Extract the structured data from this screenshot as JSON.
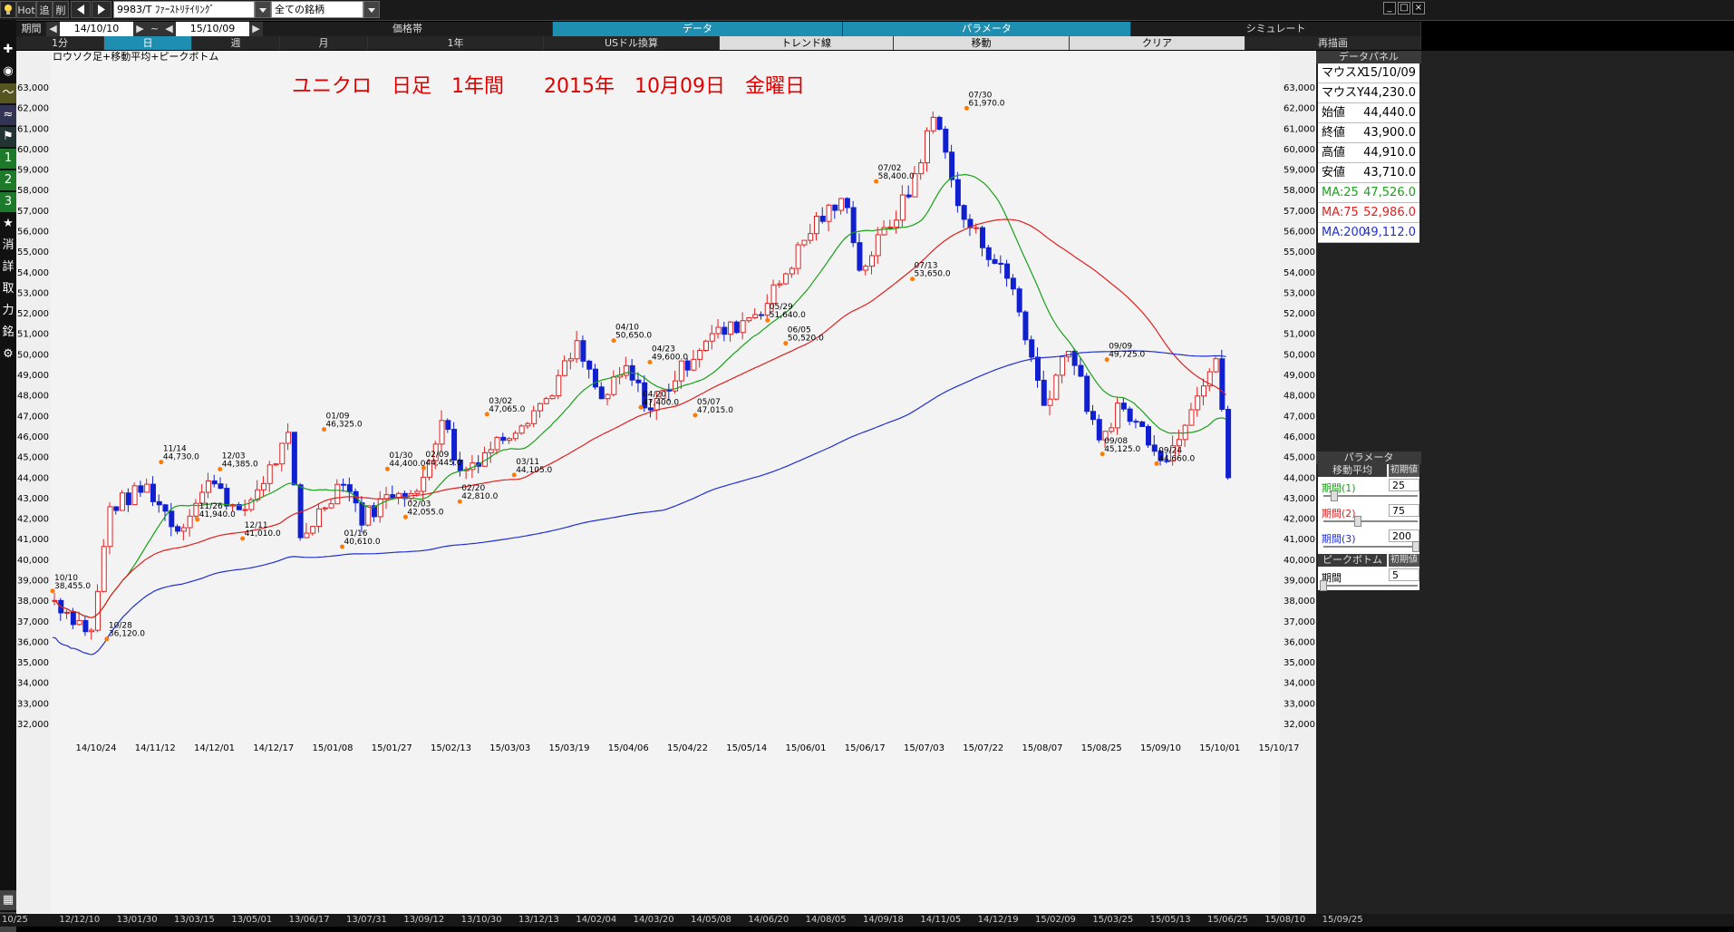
{
  "toolbar": {
    "hot": "Hot",
    "add": "追",
    "del": "削",
    "symbol": "9983/T ﾌｧｰｽﾄﾘﾃｲﾘﾝｸﾞ",
    "universe": "全ての銘柄",
    "period_label": "期間",
    "date_from": "14/10/10",
    "tilde": "~",
    "date_to": "15/10/09"
  },
  "menu_tabs": [
    "価格帯",
    "データ",
    "パラメータ",
    "シミュレート"
  ],
  "timeframes": [
    "1分",
    "日",
    "週",
    "月",
    "1年",
    "USドル換算",
    "トレンド線",
    "移動",
    "クリア",
    "再描画"
  ],
  "left_tools": [
    "search",
    "crosshair",
    "camera",
    "line",
    "wave",
    "flag",
    "1",
    "2",
    "3",
    "star",
    "消",
    "詳",
    "取",
    "力",
    "銘",
    "gear"
  ],
  "chart": {
    "subtitle": "ロウソク足+移動平均+ピークボトム",
    "headline": "ユニクロ　日足　1年間　　2015年　10月09日　金曜日",
    "y_ticks": [
      "63,000",
      "62,000",
      "61,000",
      "60,000",
      "59,000",
      "58,000",
      "57,000",
      "56,000",
      "55,000",
      "54,000",
      "53,000",
      "52,000",
      "51,000",
      "50,000",
      "49,000",
      "48,000",
      "47,000",
      "46,000",
      "45,000",
      "44,000",
      "43,000",
      "42,000",
      "41,000",
      "40,000",
      "39,000",
      "38,000",
      "37,000",
      "36,000",
      "35,000",
      "34,000",
      "33,000",
      "32,000"
    ],
    "x_ticks": [
      "14/10/24",
      "14/11/12",
      "14/12/01",
      "14/12/17",
      "15/01/08",
      "15/01/27",
      "15/02/13",
      "15/03/03",
      "15/03/19",
      "15/04/06",
      "15/04/22",
      "15/05/14",
      "15/06/01",
      "15/06/17",
      "15/07/03",
      "15/07/22",
      "15/08/07",
      "15/08/25",
      "15/09/10",
      "15/10/01",
      "15/10/17"
    ]
  },
  "chart_data": {
    "type": "candlestick",
    "ylim": [
      32000,
      63000
    ],
    "series": [
      {
        "name": "MA:25",
        "color": "#1aa01a"
      },
      {
        "name": "MA:75",
        "color": "#e02020"
      },
      {
        "name": "MA:200",
        "color": "#2030d0"
      }
    ],
    "peaks": [
      {
        "date": "10/10",
        "value": "38,455.0"
      },
      {
        "date": "10/28",
        "value": "36,120.0"
      },
      {
        "date": "11/14",
        "value": "44,730.0"
      },
      {
        "date": "11/26",
        "value": "41,940.0"
      },
      {
        "date": "12/03",
        "value": "44,385.0"
      },
      {
        "date": "12/11",
        "value": "41,010.0"
      },
      {
        "date": "01/09",
        "value": "46,325.0"
      },
      {
        "date": "01/16",
        "value": "40,610.0"
      },
      {
        "date": "01/30",
        "value": "44,400.0"
      },
      {
        "date": "02/03",
        "value": "42,055.0"
      },
      {
        "date": "02/09",
        "value": "44,445.0"
      },
      {
        "date": "02/20",
        "value": "42,810.0"
      },
      {
        "date": "03/02",
        "value": "47,065.0"
      },
      {
        "date": "03/11",
        "value": "44,105.0"
      },
      {
        "date": "04/10",
        "value": "50,650.0"
      },
      {
        "date": "04/20",
        "value": "47,400.0"
      },
      {
        "date": "04/23",
        "value": "49,600.0"
      },
      {
        "date": "05/07",
        "value": "47,015.0"
      },
      {
        "date": "05/29",
        "value": "51,640.0"
      },
      {
        "date": "06/05",
        "value": "50,520.0"
      },
      {
        "date": "07/02",
        "value": "58,400.0"
      },
      {
        "date": "07/13",
        "value": "53,650.0"
      },
      {
        "date": "07/30",
        "value": "61,970.0"
      },
      {
        "date": "09/08",
        "value": "45,125.0"
      },
      {
        "date": "09/09",
        "value": "49,725.0"
      },
      {
        "date": "09/24",
        "value": "44,660.0"
      }
    ]
  },
  "data_panel": {
    "title": "データパネル",
    "rows": [
      {
        "label": "マウスX",
        "value": "15/10/09"
      },
      {
        "label": "マウスY",
        "value": "44,230.0"
      },
      {
        "label": "始値",
        "value": "44,440.0"
      },
      {
        "label": "終値",
        "value": "43,900.0"
      },
      {
        "label": "高値",
        "value": "44,910.0"
      },
      {
        "label": "安値",
        "value": "43,710.0"
      },
      {
        "label": "MA:25",
        "value": "47,526.0",
        "color": "#1aa01a"
      },
      {
        "label": "MA:75",
        "value": "52,986.0",
        "color": "#e02020"
      },
      {
        "label": "MA:200",
        "value": "49,112.0",
        "color": "#2030d0"
      }
    ]
  },
  "params": {
    "title": "パラメータ",
    "ma_title": "移動平均",
    "reset": "初期値",
    "p1": "期間(1)",
    "v1": "25",
    "p2": "期間(2)",
    "v2": "75",
    "p3": "期間(3)",
    "v3": "200",
    "pb_title": "ピークボトム",
    "pb_reset": "初期値",
    "pb_period": "期間",
    "pb_val": "5"
  },
  "bottom_dates": [
    "10/25",
    "12/12/10",
    "13/01/30",
    "13/03/15",
    "13/05/01",
    "13/06/17",
    "13/07/31",
    "13/09/12",
    "13/10/30",
    "13/12/13",
    "14/02/04",
    "14/03/20",
    "14/05/08",
    "14/06/20",
    "14/08/05",
    "14/09/18",
    "14/11/05",
    "14/12/19",
    "15/02/09",
    "15/03/25",
    "15/05/13",
    "15/06/25",
    "15/08/10",
    "15/09/25"
  ]
}
